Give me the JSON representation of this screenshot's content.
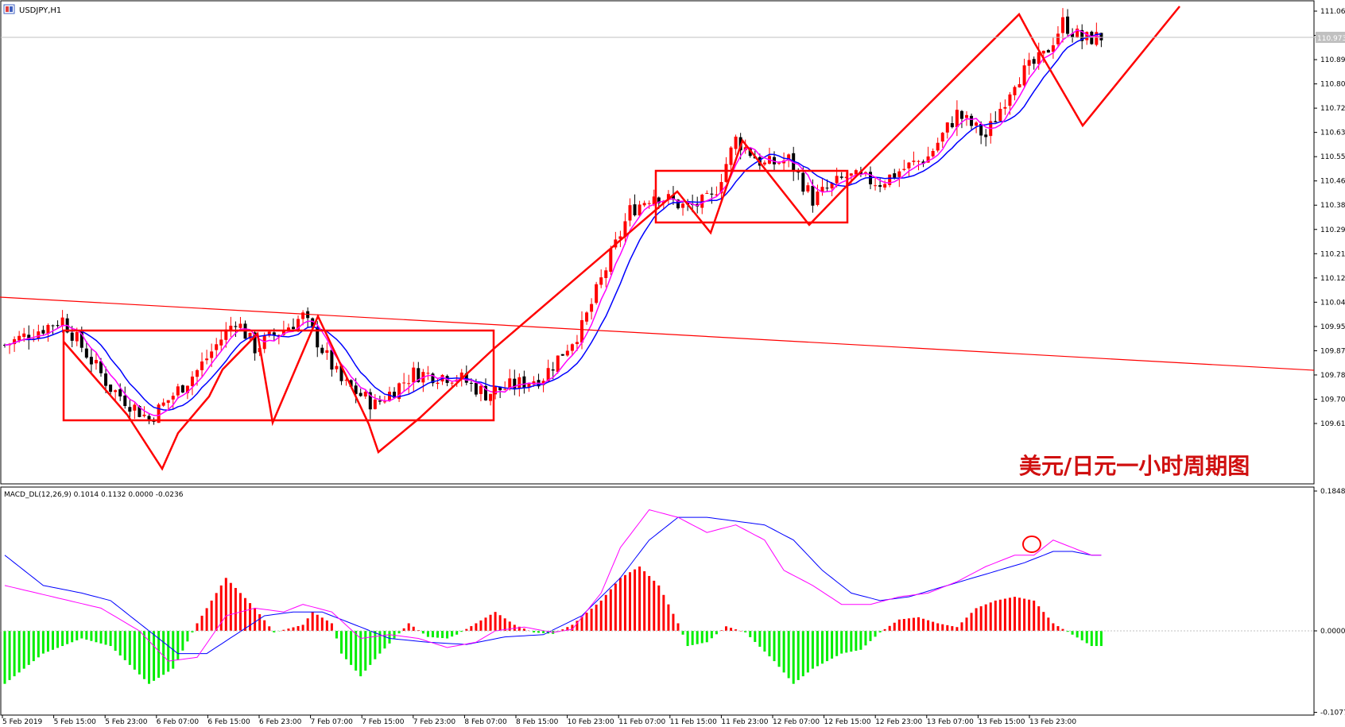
{
  "main_panel": {
    "symbol_label": "USDJPY,H1",
    "watermark": "美元/日元一小时周期图",
    "current_price_label": "110.973"
  },
  "macd_panel": {
    "label": "MACD_DL(12,26,9) 0.1014 0.1132 0.0000 -0.0236"
  },
  "colors": {
    "bull_candle": "#ff0000",
    "bear_candle": "#000000",
    "ma_fast": "#ff00ff",
    "ma_slow": "#0000ff",
    "annotation": "#ff0000",
    "hist_positive": "#ff0000",
    "hist_negative": "#00ee00",
    "macd_line": "#ff00ff",
    "signal_line": "#0000ff"
  },
  "chart_data": [
    {
      "type": "candlestick",
      "symbol": "USDJPY",
      "timeframe": "H1",
      "ylim": [
        109.55,
        111.1
      ],
      "y_ticks": [
        "111.060",
        "110.975",
        "110.890",
        "110.805",
        "110.720",
        "110.635",
        "110.550",
        "110.465",
        "110.380",
        "110.295",
        "110.210",
        "110.125",
        "110.040",
        "109.955",
        "109.870",
        "109.785",
        "109.700",
        "109.615"
      ],
      "x_ticks": [
        "5 Feb 2019",
        "5 Feb 15:00",
        "5 Feb 23:00",
        "6 Feb 07:00",
        "6 Feb 15:00",
        "6 Feb 23:00",
        "7 Feb 07:00",
        "7 Feb 15:00",
        "7 Feb 23:00",
        "8 Feb 07:00",
        "8 Feb 15:00",
        "10 Feb 23:00",
        "11 Feb 07:00",
        "11 Feb 15:00",
        "11 Feb 23:00",
        "12 Feb 07:00",
        "12 Feb 15:00",
        "12 Feb 23:00",
        "13 Feb 07:00",
        "13 Feb 15:00",
        "13 Feb 23:00"
      ],
      "anchors": [
        [
          0,
          109.89
        ],
        [
          12,
          109.98
        ],
        [
          22,
          109.74
        ],
        [
          30,
          109.63
        ],
        [
          40,
          109.8
        ],
        [
          48,
          109.98
        ],
        [
          52,
          109.88
        ],
        [
          62,
          109.99
        ],
        [
          70,
          109.76
        ],
        [
          77,
          109.68
        ],
        [
          85,
          109.79
        ],
        [
          94,
          109.78
        ],
        [
          100,
          109.72
        ],
        [
          112,
          109.78
        ],
        [
          120,
          109.95
        ],
        [
          126,
          110.2
        ],
        [
          130,
          110.36
        ],
        [
          135,
          110.42
        ],
        [
          142,
          110.37
        ],
        [
          147,
          110.4
        ],
        [
          152,
          110.61
        ],
        [
          158,
          110.52
        ],
        [
          163,
          110.54
        ],
        [
          168,
          110.4
        ],
        [
          175,
          110.48
        ],
        [
          182,
          110.46
        ],
        [
          186,
          110.5
        ],
        [
          192,
          110.55
        ],
        [
          198,
          110.7
        ],
        [
          204,
          110.62
        ],
        [
          210,
          110.82
        ],
        [
          216,
          110.9
        ],
        [
          220,
          111.02
        ],
        [
          224,
          110.96
        ],
        [
          228,
          110.97
        ]
      ],
      "overlays": [
        "moving average (magenta)",
        "moving average (blue)",
        "zig-zag lines",
        "rectangles",
        "trend line"
      ]
    },
    {
      "type": "bar",
      "indicator": "MACD_DL(12,26,9)",
      "values_printed": [
        0.1014,
        0.1132,
        0.0,
        -0.0236
      ],
      "ylim": [
        -0.1077,
        0.1848
      ],
      "y_ticks": [
        "0.1848",
        "0.0000",
        "-0.1077"
      ],
      "series": [
        {
          "name": "histogram",
          "anchors": [
            [
              0,
              -0.07
            ],
            [
              8,
              -0.03
            ],
            [
              16,
              -0.01
            ],
            [
              22,
              -0.02
            ],
            [
              30,
              -0.07
            ],
            [
              35,
              -0.05
            ],
            [
              40,
              0.01
            ],
            [
              46,
              0.07
            ],
            [
              52,
              0.03
            ],
            [
              56,
              -0.002
            ],
            [
              62,
              0.008
            ],
            [
              64,
              0.025
            ],
            [
              68,
              0.01
            ],
            [
              70,
              -0.03
            ],
            [
              74,
              -0.06
            ],
            [
              78,
              -0.03
            ],
            [
              84,
              0.01
            ],
            [
              88,
              -0.008
            ],
            [
              92,
              -0.01
            ],
            [
              94,
              -0.005
            ],
            [
              98,
              0.01
            ],
            [
              102,
              0.025
            ],
            [
              106,
              0.008
            ],
            [
              110,
              -0.002
            ],
            [
              114,
              -0.004
            ],
            [
              118,
              0.008
            ],
            [
              124,
              0.04
            ],
            [
              128,
              0.07
            ],
            [
              132,
              0.085
            ],
            [
              136,
              0.06
            ],
            [
              140,
              0.01
            ],
            [
              142,
              -0.02
            ],
            [
              146,
              -0.015
            ],
            [
              150,
              0.006
            ],
            [
              154,
              -0.002
            ],
            [
              160,
              -0.04
            ],
            [
              164,
              -0.07
            ],
            [
              168,
              -0.05
            ],
            [
              174,
              -0.03
            ],
            [
              178,
              -0.025
            ],
            [
              182,
              -0.002
            ],
            [
              186,
              0.015
            ],
            [
              190,
              0.018
            ],
            [
              194,
              0.01
            ],
            [
              198,
              0.005
            ],
            [
              202,
              0.03
            ],
            [
              206,
              0.04
            ],
            [
              210,
              0.045
            ],
            [
              214,
              0.04
            ],
            [
              218,
              0.01
            ],
            [
              222,
              -0.005
            ],
            [
              226,
              -0.02
            ]
          ]
        },
        {
          "name": "macd_line",
          "anchors": [
            [
              0,
              0.06
            ],
            [
              10,
              0.045
            ],
            [
              20,
              0.03
            ],
            [
              28,
              0.0
            ],
            [
              34,
              -0.04
            ],
            [
              40,
              -0.035
            ],
            [
              46,
              0.02
            ],
            [
              52,
              0.03
            ],
            [
              58,
              0.025
            ],
            [
              62,
              0.035
            ],
            [
              68,
              0.025
            ],
            [
              74,
              -0.01
            ],
            [
              80,
              -0.005
            ],
            [
              86,
              -0.01
            ],
            [
              92,
              -0.022
            ],
            [
              98,
              -0.015
            ],
            [
              102,
              0.0
            ],
            [
              108,
              0.005
            ],
            [
              114,
              -0.002
            ],
            [
              118,
              0.002
            ],
            [
              124,
              0.05
            ],
            [
              128,
              0.11
            ],
            [
              134,
              0.16
            ],
            [
              140,
              0.15
            ],
            [
              146,
              0.13
            ],
            [
              152,
              0.14
            ],
            [
              158,
              0.12
            ],
            [
              162,
              0.08
            ],
            [
              168,
              0.06
            ],
            [
              174,
              0.035
            ],
            [
              180,
              0.035
            ],
            [
              186,
              0.045
            ],
            [
              192,
              0.05
            ],
            [
              198,
              0.065
            ],
            [
              204,
              0.085
            ],
            [
              210,
              0.1
            ],
            [
              214,
              0.1
            ],
            [
              218,
              0.12
            ],
            [
              222,
              0.11
            ],
            [
              226,
              0.1
            ]
          ]
        },
        {
          "name": "signal_line",
          "anchors": [
            [
              0,
              0.1
            ],
            [
              8,
              0.06
            ],
            [
              16,
              0.05
            ],
            [
              22,
              0.04
            ],
            [
              30,
              0.0
            ],
            [
              36,
              -0.03
            ],
            [
              42,
              -0.03
            ],
            [
              48,
              -0.005
            ],
            [
              54,
              0.02
            ],
            [
              60,
              0.025
            ],
            [
              66,
              0.025
            ],
            [
              72,
              0.01
            ],
            [
              80,
              -0.01
            ],
            [
              88,
              -0.015
            ],
            [
              96,
              -0.018
            ],
            [
              104,
              -0.008
            ],
            [
              112,
              -0.005
            ],
            [
              120,
              0.02
            ],
            [
              128,
              0.07
            ],
            [
              134,
              0.12
            ],
            [
              140,
              0.15
            ],
            [
              146,
              0.15
            ],
            [
              152,
              0.145
            ],
            [
              158,
              0.14
            ],
            [
              164,
              0.12
            ],
            [
              170,
              0.08
            ],
            [
              176,
              0.05
            ],
            [
              182,
              0.04
            ],
            [
              188,
              0.045
            ],
            [
              196,
              0.06
            ],
            [
              204,
              0.075
            ],
            [
              212,
              0.09
            ],
            [
              218,
              0.105
            ],
            [
              222,
              0.105
            ],
            [
              226,
              0.1
            ]
          ]
        }
      ]
    }
  ]
}
